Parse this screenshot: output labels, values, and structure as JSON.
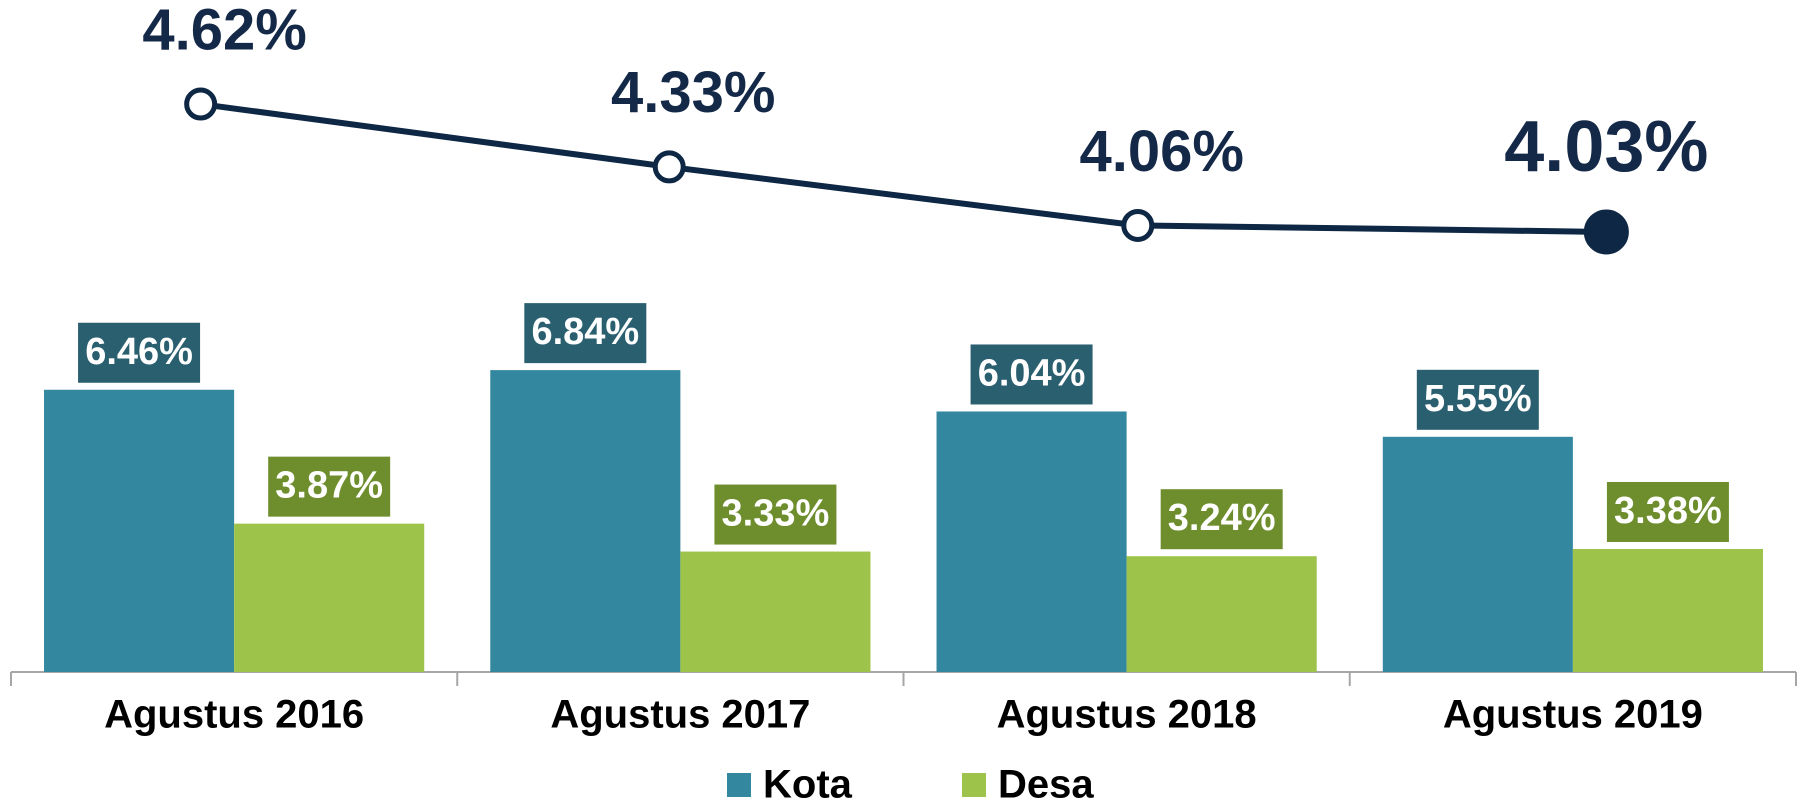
{
  "chart_data": {
    "type": "bar",
    "categories": [
      "Agustus 2016",
      "Agustus 2017",
      "Agustus 2018",
      "Agustus 2019"
    ],
    "series": [
      {
        "name": "Kota",
        "color": "#33879e",
        "label_color": "#2a5f70",
        "values": [
          6.46,
          6.84,
          6.04,
          5.55
        ],
        "value_labels": [
          "6.46%",
          "6.84%",
          "6.04%",
          "5.55%"
        ]
      },
      {
        "name": "Desa",
        "color": "#9dc34a",
        "label_color": "#6e8e2e",
        "values": [
          3.87,
          3.33,
          3.24,
          3.38
        ],
        "value_labels": [
          "3.87%",
          "3.33%",
          "3.24%",
          "3.38%"
        ]
      },
      {
        "type": "line",
        "axis": "y2",
        "color": "#0d2744",
        "values": [
          4.62,
          4.33,
          4.06,
          4.03
        ],
        "value_labels": [
          "4.62%",
          "4.33%",
          "4.06%",
          "4.03%"
        ]
      }
    ],
    "ylim": [
      1,
      14
    ],
    "y2lim": [
      2,
      5.1
    ],
    "legend": "bottom"
  }
}
